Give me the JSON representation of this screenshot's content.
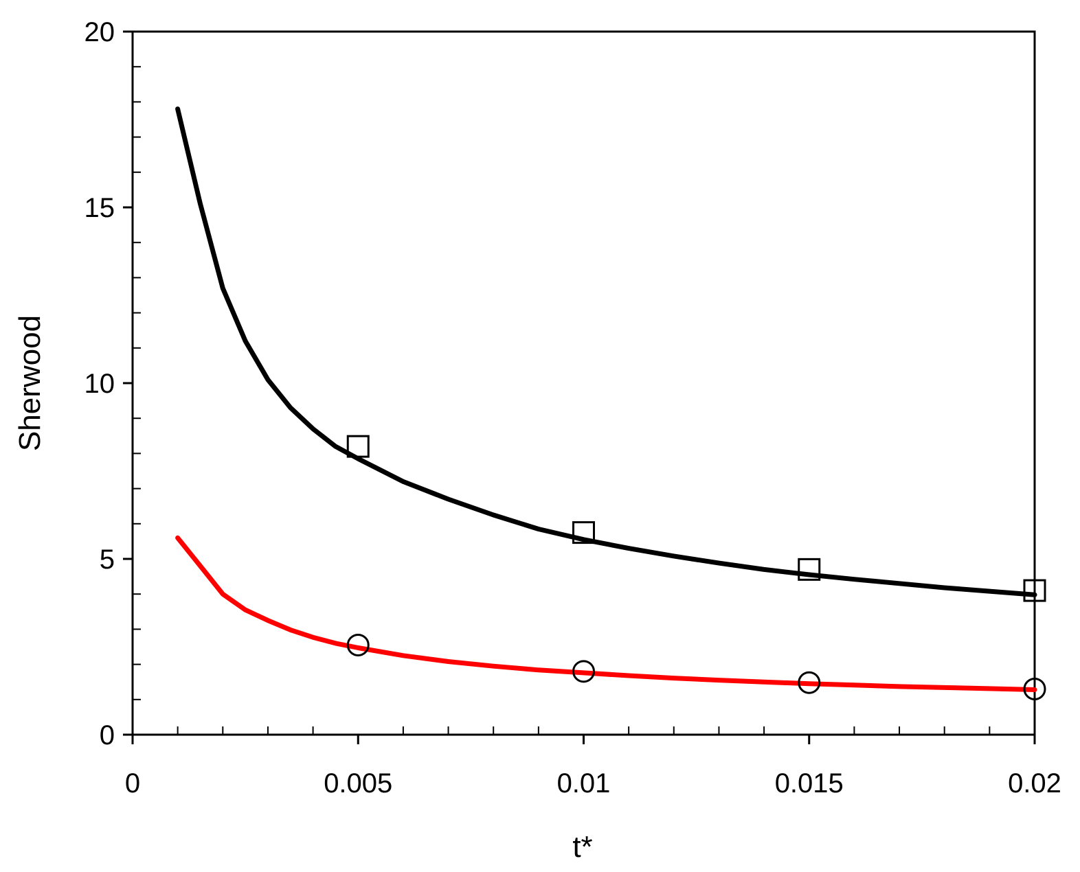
{
  "chart_data": {
    "type": "line",
    "title": "",
    "xlabel": "t*",
    "ylabel": "Sherwood",
    "xlim": [
      0,
      0.02
    ],
    "ylim": [
      0,
      20
    ],
    "x_ticks": [
      0,
      0.005,
      0.01,
      0.015,
      0.02
    ],
    "x_tick_labels": [
      "0",
      "0.005",
      "0.01",
      "0.015",
      "0.02"
    ],
    "y_ticks": [
      0,
      5,
      10,
      15,
      20
    ],
    "y_tick_labels": [
      "0",
      "5",
      "10",
      "15",
      "20"
    ],
    "x_minor_step": 0.001,
    "y_minor_step": 1,
    "grid": false,
    "legend": "none",
    "series": [
      {
        "style": "line",
        "color": "#000000",
        "x": [
          0.001,
          0.0015,
          0.002,
          0.0025,
          0.003,
          0.0035,
          0.004,
          0.0045,
          0.005,
          0.006,
          0.007,
          0.008,
          0.009,
          0.01,
          0.011,
          0.012,
          0.013,
          0.014,
          0.015,
          0.016,
          0.017,
          0.018,
          0.019,
          0.02
        ],
        "y": [
          17.8,
          15.1,
          12.7,
          11.2,
          10.1,
          9.3,
          8.7,
          8.2,
          7.85,
          7.2,
          6.7,
          6.25,
          5.85,
          5.55,
          5.3,
          5.08,
          4.88,
          4.7,
          4.55,
          4.42,
          4.3,
          4.18,
          4.08,
          3.98
        ]
      },
      {
        "style": "line",
        "color": "#ff0000",
        "x": [
          0.001,
          0.0015,
          0.002,
          0.0025,
          0.003,
          0.0035,
          0.004,
          0.0045,
          0.005,
          0.006,
          0.007,
          0.008,
          0.009,
          0.01,
          0.011,
          0.012,
          0.013,
          0.014,
          0.015,
          0.016,
          0.017,
          0.018,
          0.019,
          0.02
        ],
        "y": [
          5.6,
          4.8,
          4.0,
          3.55,
          3.25,
          2.98,
          2.77,
          2.6,
          2.47,
          2.25,
          2.08,
          1.95,
          1.84,
          1.76,
          1.68,
          1.61,
          1.55,
          1.5,
          1.45,
          1.41,
          1.37,
          1.34,
          1.31,
          1.28
        ]
      },
      {
        "style": "markers",
        "marker": "square",
        "color": "#000000",
        "x": [
          0.005,
          0.01,
          0.015,
          0.02
        ],
        "y": [
          8.2,
          5.75,
          4.7,
          4.1
        ]
      },
      {
        "style": "markers",
        "marker": "circle",
        "color": "#000000",
        "x": [
          0.005,
          0.01,
          0.015,
          0.02
        ],
        "y": [
          2.55,
          1.8,
          1.48,
          1.3
        ]
      }
    ]
  }
}
